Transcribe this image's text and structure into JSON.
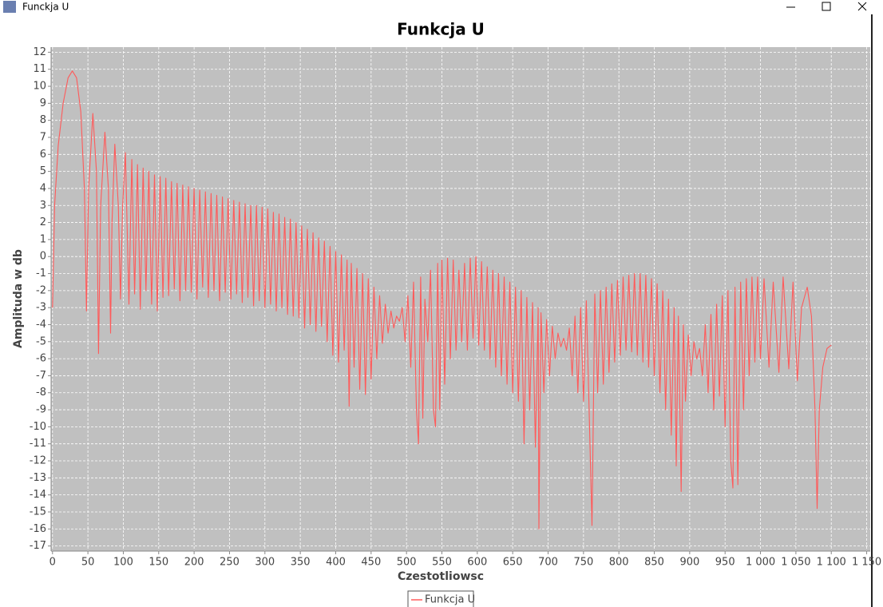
{
  "window": {
    "title": "Funckja U"
  },
  "chart_data": {
    "type": "line",
    "title": "Funkcja U",
    "x_label": "Czestotliowsc",
    "y_label": "Amplituda w db",
    "grid": true,
    "legend": "bottom",
    "xlim": [
      -2,
      1155
    ],
    "ylim": [
      -17.3,
      12.3
    ],
    "xticks": [
      0,
      50,
      100,
      150,
      200,
      250,
      300,
      350,
      400,
      450,
      500,
      550,
      600,
      650,
      700,
      750,
      800,
      850,
      900,
      950,
      {
        "value": 1000,
        "label": "1 000"
      },
      {
        "value": 1050,
        "label": "1 050"
      },
      {
        "value": 1100,
        "label": "1 100"
      },
      {
        "value": 1150,
        "label": "1 150"
      }
    ],
    "yticks": [
      12,
      11,
      10,
      9,
      8,
      7,
      6,
      5,
      4,
      3,
      2,
      1,
      0,
      -1,
      -2,
      -3,
      -4,
      -5,
      -6,
      -7,
      -8,
      -9,
      -10,
      -11,
      -12,
      -13,
      -14,
      -15,
      -16,
      -17
    ],
    "series": [
      {
        "name": "Funkcja U",
        "color": "#ff5a5a",
        "x": [
          0,
          3,
          8,
          15,
          22,
          28,
          34,
          40,
          45,
          48,
          51,
          57,
          62,
          65,
          68,
          74,
          79,
          82,
          84,
          88,
          93,
          96,
          99,
          103,
          108,
          112,
          116,
          120,
          124,
          128,
          132,
          136,
          140,
          144,
          148,
          152,
          156,
          160,
          164,
          168,
          172,
          176,
          180,
          184,
          188,
          192,
          196,
          200,
          204,
          208,
          212,
          216,
          220,
          224,
          228,
          232,
          236,
          240,
          244,
          248,
          252,
          256,
          260,
          264,
          268,
          272,
          276,
          280,
          284,
          288,
          292,
          296,
          300,
          304,
          308,
          312,
          316,
          320,
          324,
          328,
          332,
          336,
          340,
          344,
          348,
          352,
          356,
          360,
          364,
          368,
          372,
          376,
          380,
          384,
          388,
          392,
          396,
          400,
          404,
          408,
          412,
          416,
          419,
          422,
          426,
          430,
          434,
          438,
          442,
          446,
          450,
          454,
          458,
          462,
          466,
          470,
          474,
          478,
          482,
          486,
          490,
          494,
          498,
          502,
          506,
          510,
          514,
          517,
          520,
          523,
          526,
          530,
          534,
          538,
          541,
          544,
          547,
          550,
          554,
          558,
          562,
          566,
          570,
          574,
          578,
          582,
          586,
          590,
          594,
          598,
          602,
          606,
          610,
          614,
          618,
          622,
          626,
          630,
          634,
          638,
          642,
          646,
          650,
          654,
          658,
          662,
          666,
          670,
          674,
          678,
          682,
          686,
          687,
          690,
          694,
          698,
          702,
          706,
          710,
          714,
          718,
          722,
          726,
          730,
          734,
          738,
          742,
          746,
          750,
          754,
          758,
          762,
          766,
          770,
          774,
          778,
          782,
          786,
          790,
          794,
          798,
          802,
          806,
          810,
          814,
          818,
          822,
          826,
          830,
          834,
          838,
          842,
          846,
          850,
          854,
          858,
          862,
          866,
          870,
          874,
          878,
          881,
          884,
          888,
          891,
          894,
          898,
          902,
          906,
          910,
          914,
          918,
          922,
          926,
          930,
          934,
          938,
          942,
          946,
          950,
          954,
          958,
          961,
          964,
          968,
          972,
          976,
          980,
          984,
          988,
          992,
          996,
          1000,
          1005,
          1012,
          1018,
          1026,
          1032,
          1040,
          1046,
          1052,
          1058,
          1066,
          1072,
          1077,
          1080,
          1083,
          1088,
          1094,
          1100
        ],
        "values": [
          -3,
          3,
          6.5,
          9,
          10.5,
          10.9,
          10.5,
          8.5,
          4,
          -3.2,
          4,
          8.4,
          5,
          -5.7,
          3,
          7.3,
          4,
          -4.5,
          2,
          6.6,
          3,
          -2.5,
          3,
          6.1,
          -2.8,
          5.7,
          -2.2,
          5.4,
          -3.1,
          5.2,
          -2,
          5,
          -2.8,
          4.8,
          -3.2,
          4.7,
          -2.4,
          4.6,
          -2.3,
          4.4,
          -1.9,
          4.3,
          -2.6,
          4.2,
          -2,
          4.1,
          -2.1,
          4,
          -2.5,
          3.9,
          -1.8,
          3.8,
          -2.4,
          3.7,
          -2,
          3.6,
          -2.6,
          3.5,
          -2.1,
          3.4,
          -2.5,
          3.3,
          -2.2,
          3.2,
          -2.7,
          3.1,
          -2.4,
          3,
          -2.9,
          3,
          -2.6,
          2.9,
          -3,
          2.8,
          -2.8,
          2.6,
          -3.2,
          2.5,
          -3,
          2.3,
          -3.4,
          2.2,
          -3.5,
          2,
          -3.6,
          1.8,
          -4.2,
          1.6,
          -4,
          1.4,
          -4.4,
          1.1,
          -4.1,
          0.9,
          -5,
          0.6,
          -5.8,
          0.3,
          -6.2,
          0.1,
          -5.5,
          -0.2,
          -8.8,
          -0.4,
          -6.5,
          -0.7,
          -7.8,
          -1,
          -8.1,
          -1.3,
          -7.2,
          -1.8,
          -6,
          -2.3,
          -5.1,
          -2.8,
          -4.5,
          -3.2,
          -4.2,
          -3.5,
          -3.8,
          -3,
          -5,
          -2.3,
          -6.5,
          -1.5,
          -9,
          -11,
          -1.2,
          -9.5,
          -2.5,
          -5,
          -0.8,
          -9,
          -10,
          -0.4,
          -9,
          -0.2,
          -7.5,
          -0.1,
          -6,
          -0.2,
          -5.5,
          -0.8,
          -5,
          -0.4,
          -5.5,
          -0.1,
          -4.8,
          0,
          -5.2,
          -0.3,
          -5.5,
          -0.6,
          -6,
          -0.8,
          -6.5,
          -1,
          -7,
          -1.2,
          -7.5,
          -1.5,
          -8,
          -1.8,
          -8.5,
          -2,
          -11,
          -2.4,
          -9,
          -2.7,
          -11.2,
          -3,
          -16,
          -3.3,
          -8,
          -3.7,
          -7,
          -4.1,
          -6,
          -4.5,
          -5.3,
          -4.8,
          -5.5,
          -4.2,
          -7,
          -3.5,
          -8,
          -3,
          -8.5,
          -2.6,
          -9,
          -15.8,
          -2.2,
          -8,
          -2,
          -7.5,
          -1.8,
          -6.8,
          -1.6,
          -6.2,
          -1.4,
          -5.8,
          -1.2,
          -5.5,
          -1.1,
          -5.6,
          -1,
          -5.8,
          -1,
          -6.2,
          -1.1,
          -6.5,
          -1.3,
          -7,
          -1.6,
          -8,
          -2,
          -9,
          -2.5,
          -10.5,
          -3,
          -12.3,
          -3.5,
          -13.8,
          -4,
          -8.5,
          -4.6,
          -7,
          -5,
          -6,
          -5.4,
          -7,
          -4,
          -8,
          -3.4,
          -9,
          -2.8,
          -8.2,
          -2.3,
          -10,
          -2,
          -12,
          -13.6,
          -1.8,
          -13.4,
          -1.5,
          -9,
          -1.3,
          -7,
          -1.2,
          -6.2,
          -1.2,
          -6,
          -1.3,
          -6.5,
          -1.5,
          -6.8,
          -1.2,
          -6.6,
          -1.5,
          -7.3,
          -3,
          -1.8,
          -3.5,
          -9,
          -14.8,
          -9,
          -6.5,
          -5.4,
          -5.2
        ]
      }
    ]
  }
}
